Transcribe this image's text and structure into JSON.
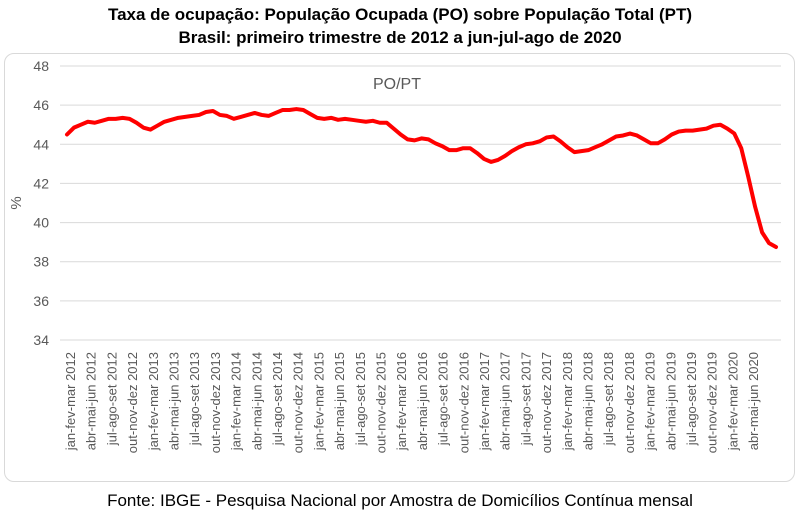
{
  "title": "Taxa de ocupação: População Ocupada (PO) sobre População Total (PT)",
  "subtitle": "Brasil: primeiro trimestre de 2012 a jun-jul-ago de 2020",
  "source": "Fonte: IBGE - Pesquisa Nacional por Amostra de Domicílios Contínua mensal",
  "colors": {
    "line": "#ff0000",
    "grid": "#d9d9d9",
    "text": "#595959"
  },
  "chart_data": {
    "type": "line",
    "title": "Taxa de ocupação: População Ocupada (PO) sobre População Total (PT)",
    "subtitle": "Brasil: primeiro trimestre de 2012 a jun-jul-ago de 2020",
    "ylabel": "%",
    "ylim": [
      34,
      48
    ],
    "yticks": [
      "34",
      "36",
      "38",
      "40",
      "42",
      "44",
      "46",
      "48"
    ],
    "grid": true,
    "legend": "top-center",
    "xticklabels": [
      "jan-fev-mar 2012",
      "abr-mai-jun 2012",
      "jul-ago-set 2012",
      "out-nov-dez 2012",
      "jan-fev-mar 2013",
      "abr-mai-jun 2013",
      "jul-ago-set 2013",
      "out-nov-dez 2013",
      "jan-fev-mar 2014",
      "abr-mai-jun 2014",
      "jul-ago-set 2014",
      "out-nov-dez 2014",
      "jan-fev-mar 2015",
      "abr-mai-jun 2015",
      "jul-ago-set 2015",
      "out-nov-dez 2015",
      "jan-fev-mar 2016",
      "abr-mai-jun 2016",
      "jul-ago-set 2016",
      "out-nov-dez 2016",
      "jan-fev-mar 2017",
      "abr-mai-jun 2017",
      "jul-ago-set 2017",
      "out-nov-dez 2017",
      "jan-fev-mar 2018",
      "abr-mai-jun 2018",
      "jul-ago-set 2018",
      "out-nov-dez 2018",
      "jan-fev-mar 2019",
      "abr-mai-jun 2019",
      "jul-ago-set 2019",
      "out-nov-dez 2019",
      "jan-fev-mar 2020",
      "abr-mai-jun 2020"
    ],
    "series": [
      {
        "name": "PO/PT",
        "values": [
          44.5,
          44.85,
          45.0,
          45.15,
          45.1,
          45.2,
          45.3,
          45.3,
          45.35,
          45.3,
          45.1,
          44.85,
          44.75,
          44.95,
          45.15,
          45.25,
          45.35,
          45.4,
          45.45,
          45.5,
          45.65,
          45.7,
          45.5,
          45.45,
          45.3,
          45.4,
          45.5,
          45.6,
          45.5,
          45.45,
          45.6,
          45.75,
          45.75,
          45.8,
          45.75,
          45.55,
          45.35,
          45.3,
          45.35,
          45.25,
          45.3,
          45.25,
          45.2,
          45.15,
          45.2,
          45.1,
          45.1,
          44.8,
          44.5,
          44.25,
          44.2,
          44.3,
          44.25,
          44.05,
          43.9,
          43.7,
          43.7,
          43.8,
          43.8,
          43.55,
          43.25,
          43.1,
          43.2,
          43.4,
          43.65,
          43.85,
          44.0,
          44.05,
          44.15,
          44.35,
          44.4,
          44.15,
          43.85,
          43.6,
          43.65,
          43.7,
          43.85,
          44.0,
          44.2,
          44.4,
          44.45,
          44.55,
          44.45,
          44.25,
          44.05,
          44.05,
          44.25,
          44.5,
          44.65,
          44.7,
          44.7,
          44.75,
          44.8,
          44.95,
          45.0,
          44.8,
          44.55,
          43.8,
          42.35,
          40.8,
          39.5,
          38.95,
          38.75
        ]
      }
    ]
  }
}
